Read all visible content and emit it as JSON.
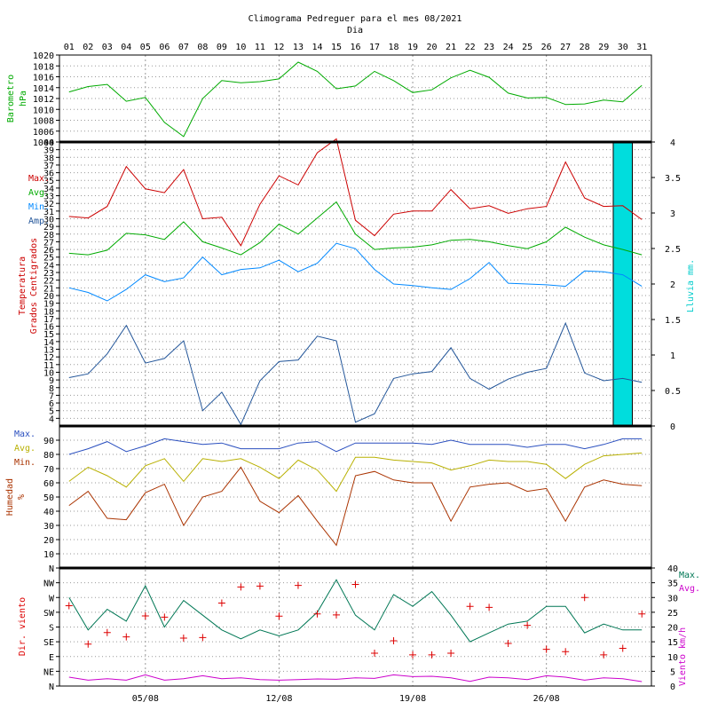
{
  "chart_data": [
    {
      "type": "line",
      "title": "Climograma Pedreguer para el mes 08/2021",
      "xlabel": "Dia",
      "x": [
        "01",
        "02",
        "03",
        "04",
        "05",
        "06",
        "07",
        "08",
        "09",
        "10",
        "11",
        "12",
        "13",
        "14",
        "15",
        "16",
        "17",
        "18",
        "19",
        "20",
        "21",
        "22",
        "23",
        "24",
        "25",
        "26",
        "27",
        "28",
        "29",
        "30",
        "31"
      ],
      "ylabel": [
        "Barometro",
        "hPa"
      ],
      "ylim": [
        1004,
        1020
      ],
      "yticks": [
        "1004",
        "1006",
        "1008",
        "1010",
        "1012",
        "1014",
        "1016",
        "1018",
        "1020"
      ],
      "series": [
        {
          "color": "#00aa00",
          "values": [
            1013.2,
            1014.2,
            1014.6,
            1011.5,
            1012.2,
            1007.6,
            1005.0,
            1012.0,
            1015.3,
            1014.9,
            1015.1,
            1015.6,
            1018.7,
            1017.0,
            1013.8,
            1014.3,
            1017.0,
            1015.3,
            1013.1,
            1013.6,
            1015.8,
            1017.2,
            1015.9,
            1013.0,
            1012.1,
            1012.2,
            1010.9,
            1011.0,
            1011.7,
            1011.4,
            1014.4
          ]
        }
      ]
    },
    {
      "type": "line",
      "ylabel": [
        "Temperatura",
        "Grados Centigrados"
      ],
      "y2label": "Lluvia mm.",
      "ylim": [
        3,
        40
      ],
      "yticks": [
        "4",
        "5",
        "6",
        "7",
        "8",
        "9",
        "10",
        "11",
        "12",
        "13",
        "14",
        "15",
        "16",
        "17",
        "18",
        "19",
        "20",
        "21",
        "22",
        "23",
        "24",
        "25",
        "26",
        "27",
        "28",
        "29",
        "30",
        "31",
        "32",
        "33",
        "34",
        "35",
        "36",
        "37",
        "38",
        "39",
        "40"
      ],
      "y2lim": [
        0,
        4
      ],
      "y2ticks": [
        "0",
        "0.5",
        "1",
        "1.5",
        "2",
        "2.5",
        "3",
        "3.5",
        "4"
      ],
      "legend": [
        {
          "label": "Max.",
          "color": "#cc0000"
        },
        {
          "label": "Avg.",
          "color": "#00aa00"
        },
        {
          "label": "Min.",
          "color": "#0088ff"
        },
        {
          "label": "Amp.",
          "color": "#225599"
        }
      ],
      "series": [
        {
          "name": "Max.",
          "color": "#cc0000",
          "values": [
            30.3,
            30.1,
            31.6,
            36.8,
            33.9,
            33.4,
            36.4,
            30.0,
            30.2,
            26.5,
            31.9,
            35.6,
            34.4,
            38.6,
            40.4,
            29.8,
            27.8,
            30.6,
            31.0,
            31.0,
            33.8,
            31.3,
            31.7,
            30.7,
            31.3,
            31.6,
            37.4,
            32.7,
            31.6,
            31.7,
            29.9
          ]
        },
        {
          "name": "Avg.",
          "color": "#00aa00",
          "values": [
            25.5,
            25.3,
            25.9,
            28.1,
            27.9,
            27.3,
            29.6,
            27.0,
            26.2,
            25.3,
            26.9,
            29.3,
            28.0,
            30.1,
            32.2,
            28.0,
            26.0,
            26.2,
            26.3,
            26.6,
            27.2,
            27.3,
            27.0,
            26.5,
            26.1,
            27.0,
            28.9,
            27.6,
            26.6,
            26.0,
            25.3
          ]
        },
        {
          "name": "Min.",
          "color": "#0088ff",
          "values": [
            21.0,
            20.4,
            19.3,
            20.8,
            22.7,
            21.8,
            22.3,
            25.0,
            22.7,
            23.4,
            23.6,
            24.6,
            23.1,
            24.2,
            26.8,
            26.1,
            23.4,
            21.5,
            21.3,
            21.0,
            20.8,
            22.2,
            24.3,
            21.6,
            21.5,
            21.4,
            21.2,
            23.2,
            23.1,
            22.7,
            21.2
          ]
        },
        {
          "name": "Amp.",
          "color": "#225599",
          "values": [
            9.3,
            9.8,
            12.4,
            16.1,
            11.2,
            11.8,
            14.1,
            5.0,
            7.4,
            3.2,
            8.9,
            11.4,
            11.6,
            14.7,
            14.1,
            3.5,
            4.6,
            9.2,
            9.8,
            10.1,
            13.2,
            9.2,
            7.8,
            9.1,
            10.0,
            10.5,
            16.4,
            9.9,
            8.9,
            9.2,
            8.7
          ]
        }
      ],
      "rain": {
        "color": "#00dddd",
        "days": [
          "30"
        ],
        "values": [
          4
        ]
      }
    },
    {
      "type": "line",
      "ylabel": [
        "Humedad",
        "%"
      ],
      "ylim": [
        0,
        100
      ],
      "yticks": [
        "N",
        "10",
        "20",
        "30",
        "40",
        "50",
        "60",
        "70",
        "80",
        "90"
      ],
      "legend": [
        {
          "label": "Max.",
          "color": "#2a4fbf"
        },
        {
          "label": "Avg.",
          "color": "#b8b000"
        },
        {
          "label": "Min.",
          "color": "#aa3300"
        }
      ],
      "series": [
        {
          "name": "Max.",
          "color": "#2a4fbf",
          "values": [
            80,
            84,
            89,
            82,
            86,
            91,
            89,
            87,
            88,
            84,
            84,
            84,
            88,
            89,
            82,
            88,
            88,
            88,
            88,
            87,
            90,
            87,
            87,
            87,
            85,
            87,
            87,
            84,
            87,
            91,
            91
          ]
        },
        {
          "name": "Avg.",
          "color": "#b8b000",
          "values": [
            61,
            71,
            65,
            57,
            72,
            77,
            61,
            77,
            75,
            77,
            71,
            63,
            76,
            69,
            54,
            78,
            78,
            76,
            75,
            74,
            69,
            72,
            76,
            75,
            75,
            73,
            63,
            73,
            79,
            80,
            81
          ]
        },
        {
          "name": "Min.",
          "color": "#aa3300",
          "values": [
            44,
            54,
            35,
            34,
            53,
            59,
            30,
            50,
            54,
            71,
            47,
            39,
            51,
            33,
            16,
            65,
            68,
            62,
            60,
            60,
            33,
            57,
            59,
            60,
            54,
            56,
            33,
            57,
            62,
            59,
            58
          ]
        }
      ]
    },
    {
      "type": "scatter",
      "x_ticklabels": [
        "05/08",
        "12/08",
        "19/08",
        "26/08"
      ],
      "ylabel": "Dir. viento",
      "ylim": [
        0,
        360
      ],
      "yticks": [
        "N",
        "NE",
        "E",
        "SE",
        "S",
        "SW",
        "W",
        "NW"
      ],
      "y2label": "Viento km/h",
      "y2lim": [
        0,
        40
      ],
      "y2ticks": [
        "0",
        "5",
        "10",
        "15",
        "20",
        "25",
        "30",
        "35",
        "40"
      ],
      "legend": [
        {
          "label": "Max.",
          "color": "#007755"
        },
        {
          "label": "Avg.",
          "color": "#cc00cc"
        }
      ],
      "direction_degrees": [
        245,
        128,
        163,
        150,
        214,
        210,
        146,
        148,
        253,
        302,
        305,
        213,
        307,
        220,
        217,
        310,
        100,
        138,
        95,
        95,
        100,
        243,
        240,
        130,
        185,
        112,
        105,
        270,
        95,
        115,
        220
      ],
      "wind_series": [
        {
          "name": "Max.",
          "color": "#007755",
          "values": [
            30,
            19,
            26,
            22,
            34,
            20,
            29,
            24,
            19,
            16,
            19,
            17,
            19,
            25,
            36,
            24,
            19,
            31,
            27,
            32,
            24,
            15,
            18,
            21,
            22,
            27,
            27,
            18,
            21,
            19,
            19
          ]
        },
        {
          "name": "Avg.",
          "color": "#cc00cc",
          "values": [
            3,
            2,
            2.5,
            2,
            3.8,
            2,
            2.5,
            3.5,
            2.5,
            2.8,
            2.2,
            2,
            2.2,
            2.4,
            2.3,
            2.8,
            2.6,
            3.8,
            3.2,
            3.3,
            2.8,
            1.6,
            3,
            2.8,
            2.2,
            3.5,
            3,
            2,
            2.8,
            2.5,
            1.5
          ]
        }
      ]
    }
  ]
}
